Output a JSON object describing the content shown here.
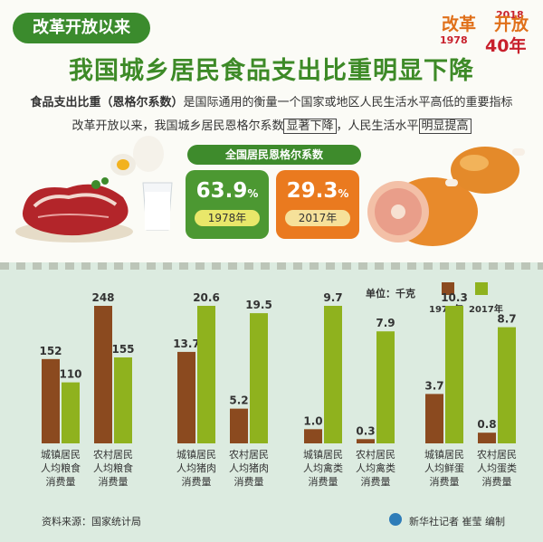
{
  "header": {
    "tag": "改革开放以来",
    "logo_text1": "改革",
    "logo_text2": "开放",
    "logo_year1": "2018",
    "logo_year2": "1978",
    "logo_years": "40年",
    "title": "我国城乡居民食品支出比重明显下降",
    "desc_bold": "食品支出比重（恩格尔系数）",
    "desc_rest": "是国际通用的衡量一个国家或地区人民生活水平高低的重要指标",
    "desc2_a": "改革开放以来，我国城乡居民恩格尔系数",
    "desc2_b": "显著下降",
    "desc2_c": "，人民生活水平",
    "desc2_d": "明显提高"
  },
  "engel": {
    "label": "全国居民恩格尔系数",
    "v1978": "63.9",
    "y1978": "1978年",
    "v2017": "29.3",
    "y2017": "2017年",
    "pct": "%"
  },
  "legend": {
    "unit": "单位：千克",
    "s1": "1978年",
    "s2": "2017年",
    "color1978": "#8b4a1f",
    "color2017": "#8fb21e"
  },
  "chart_data": {
    "type": "bar",
    "categories": [
      [
        "城镇居民",
        "人均粮食",
        "消费量"
      ],
      [
        "农村居民",
        "人均粮食",
        "消费量"
      ],
      [
        "城镇居民",
        "人均猪肉",
        "消费量"
      ],
      [
        "农村居民",
        "人均猪肉",
        "消费量"
      ],
      [
        "城镇居民",
        "人均禽类",
        "消费量"
      ],
      [
        "农村居民",
        "人均禽类",
        "消费量"
      ],
      [
        "城镇居民",
        "人均鲜蛋",
        "消费量"
      ],
      [
        "农村居民",
        "人均蛋类",
        "消费量"
      ]
    ],
    "series": [
      {
        "name": "1978年",
        "values": [
          152,
          248,
          13.7,
          5.2,
          1.0,
          0.3,
          3.7,
          0.8
        ]
      },
      {
        "name": "2017年",
        "values": [
          110,
          155,
          20.6,
          19.5,
          9.7,
          7.9,
          10.3,
          8.7
        ]
      }
    ],
    "labels": [
      [
        "152",
        "248",
        "13.7",
        "5.2",
        "1.0",
        "0.3",
        "3.7",
        "0.8"
      ],
      [
        "110",
        "155",
        "20.6",
        "19.5",
        "9.7",
        "7.9",
        "10.3",
        "8.7"
      ]
    ],
    "groups": [
      {
        "name": "粮食",
        "max": 248
      },
      {
        "name": "猪肉",
        "max": 20.6
      },
      {
        "name": "禽类",
        "max": 9.7
      },
      {
        "name": "蛋类",
        "max": 10.3
      }
    ],
    "unit": "千克"
  },
  "footer": {
    "source": "资料来源：国家统计局",
    "credit": "新华社记者 崔莹 编制"
  }
}
